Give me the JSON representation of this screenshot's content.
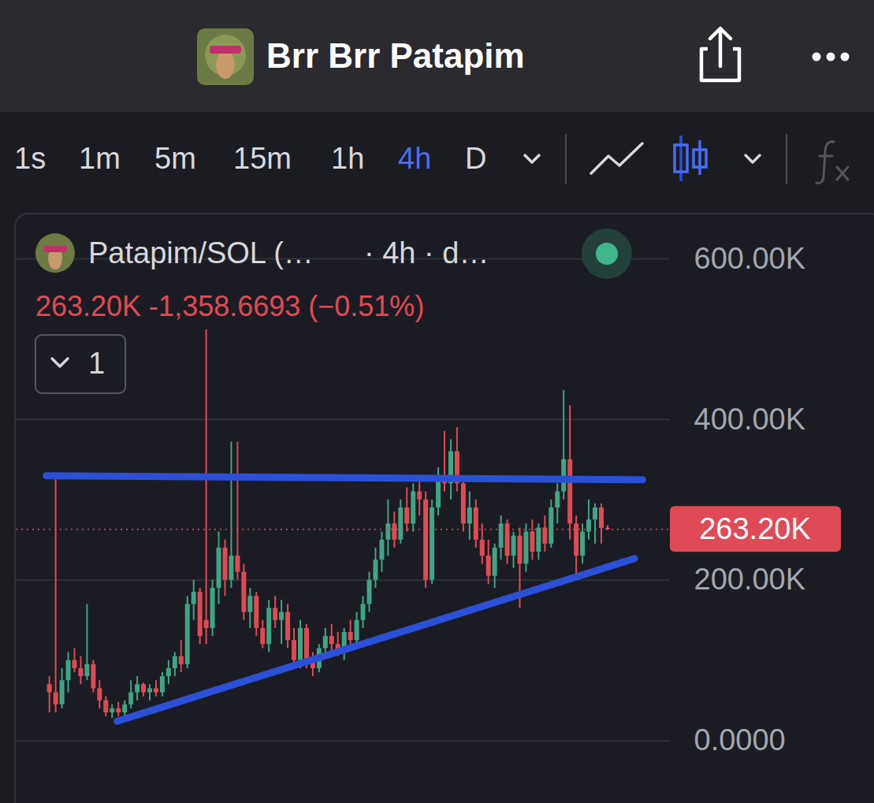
{
  "header": {
    "title": "Brr Brr Patapim"
  },
  "toolbar": {
    "intervals": [
      "1s",
      "1m",
      "5m",
      "15m",
      "1h",
      "4h",
      "D"
    ],
    "active": "4h"
  },
  "chart_data": {
    "type": "candlestick",
    "title": "Patapim/SOL (…",
    "subtitle": "· 4h · d…",
    "current_price": {
      "value": 263200,
      "label": "263.20K"
    },
    "change": {
      "value": -1358.6693,
      "label": "-1,358.6693"
    },
    "change_percent": {
      "value": -0.51,
      "label": "(−0.51%)"
    },
    "indicator_count": 1,
    "x": [
      0,
      1,
      2,
      3,
      4,
      5,
      6,
      7,
      8,
      9,
      10,
      11,
      12,
      13,
      14,
      15,
      16,
      17,
      18,
      19,
      20,
      21,
      22,
      23,
      24,
      25,
      26,
      27,
      28,
      29,
      30,
      31,
      32,
      33,
      34,
      35,
      36,
      37,
      38,
      39,
      40,
      41,
      42,
      43,
      44,
      45,
      46,
      47,
      48,
      49,
      50,
      51,
      52,
      53,
      54,
      55,
      56,
      57,
      58,
      59,
      60,
      61,
      62,
      63,
      64,
      65,
      66,
      67,
      68,
      69,
      70,
      71,
      72,
      73,
      74,
      75,
      76,
      77,
      78,
      79,
      80,
      81,
      82,
      83,
      84,
      85,
      86,
      87,
      88,
      89
    ],
    "open": [
      70000,
      60000,
      45000,
      75000,
      100000,
      90000,
      80000,
      95000,
      65000,
      50000,
      35000,
      40000,
      35000,
      45000,
      60000,
      70000,
      60000,
      65000,
      60000,
      80000,
      90000,
      105000,
      95000,
      170000,
      185000,
      150000,
      140000,
      190000,
      240000,
      200000,
      230000,
      210000,
      160000,
      180000,
      140000,
      120000,
      165000,
      150000,
      160000,
      125000,
      100000,
      140000,
      100000,
      90000,
      115000,
      130000,
      120000,
      110000,
      135000,
      125000,
      150000,
      170000,
      200000,
      225000,
      250000,
      270000,
      250000,
      290000,
      270000,
      310000,
      300000,
      200000,
      290000,
      330000,
      320000,
      360000,
      320000,
      270000,
      290000,
      250000,
      230000,
      205000,
      240000,
      270000,
      230000,
      255000,
      220000,
      260000,
      235000,
      265000,
      245000,
      290000,
      310000,
      350000,
      270000,
      230000,
      260000,
      275000,
      290000,
      264558.67
    ],
    "high": [
      80000,
      330000,
      90000,
      110000,
      115000,
      105000,
      170000,
      100000,
      75000,
      55000,
      45000,
      48000,
      50000,
      75000,
      80000,
      72000,
      70000,
      75000,
      85000,
      100000,
      110000,
      125000,
      180000,
      200000,
      190000,
      512000,
      200000,
      260000,
      250000,
      372000,
      372000,
      220000,
      190000,
      185000,
      150000,
      175000,
      180000,
      175000,
      170000,
      140000,
      150000,
      145000,
      110000,
      120000,
      140000,
      145000,
      135000,
      140000,
      150000,
      160000,
      180000,
      210000,
      240000,
      260000,
      300000,
      285000,
      300000,
      315000,
      320000,
      330000,
      310000,
      300000,
      340000,
      385000,
      375000,
      390000,
      330000,
      310000,
      300000,
      270000,
      250000,
      245000,
      280000,
      275000,
      260000,
      265000,
      270000,
      275000,
      270000,
      280000,
      300000,
      320000,
      436000,
      417000,
      280000,
      270000,
      300000,
      295000,
      295000,
      268000
    ],
    "low": [
      35000,
      35000,
      40000,
      60000,
      85000,
      70000,
      75000,
      60000,
      40000,
      30000,
      28000,
      30000,
      30000,
      40000,
      50000,
      55000,
      50000,
      55000,
      55000,
      70000,
      80000,
      85000,
      90000,
      150000,
      120000,
      120000,
      130000,
      170000,
      180000,
      190000,
      200000,
      150000,
      140000,
      130000,
      115000,
      110000,
      140000,
      120000,
      115000,
      95000,
      90000,
      90000,
      80000,
      85000,
      105000,
      110000,
      105000,
      100000,
      115000,
      120000,
      140000,
      160000,
      190000,
      210000,
      230000,
      240000,
      245000,
      260000,
      260000,
      280000,
      190000,
      195000,
      280000,
      310000,
      300000,
      310000,
      260000,
      250000,
      240000,
      220000,
      195000,
      190000,
      225000,
      220000,
      215000,
      165000,
      210000,
      225000,
      225000,
      235000,
      240000,
      270000,
      300000,
      250000,
      205000,
      220000,
      250000,
      245000,
      245000,
      262000
    ],
    "close": [
      60000,
      45000,
      75000,
      100000,
      90000,
      80000,
      95000,
      65000,
      50000,
      35000,
      40000,
      35000,
      45000,
      60000,
      70000,
      60000,
      65000,
      60000,
      80000,
      90000,
      105000,
      95000,
      170000,
      185000,
      130000,
      140000,
      190000,
      240000,
      200000,
      230000,
      210000,
      160000,
      180000,
      140000,
      120000,
      165000,
      150000,
      160000,
      125000,
      100000,
      140000,
      100000,
      90000,
      115000,
      130000,
      120000,
      110000,
      135000,
      125000,
      150000,
      170000,
      200000,
      225000,
      250000,
      270000,
      250000,
      290000,
      270000,
      310000,
      300000,
      200000,
      290000,
      330000,
      320000,
      360000,
      320000,
      270000,
      290000,
      250000,
      230000,
      205000,
      240000,
      270000,
      230000,
      255000,
      220000,
      260000,
      235000,
      265000,
      245000,
      290000,
      310000,
      350000,
      270000,
      230000,
      260000,
      275000,
      290000,
      264558.67,
      263200
    ],
    "trendlines": [
      {
        "x": [
          -0.5,
          94.6
        ],
        "y": [
          330000,
          325000
        ]
      },
      {
        "x": [
          10.8,
          93.3
        ],
        "y": [
          24500,
          227000
        ]
      }
    ],
    "xlim": [
      -5.3,
      99
    ],
    "ylim": [
      -68000,
      647000
    ],
    "yticks": [
      {
        "value": 0,
        "label": "0.0000"
      },
      {
        "value": 200000,
        "label": "200.00K"
      },
      {
        "value": 400000,
        "label": "400.00K"
      },
      {
        "value": 600000,
        "label": "600.00K"
      }
    ],
    "grid": true,
    "tick_labels": "y"
  }
}
